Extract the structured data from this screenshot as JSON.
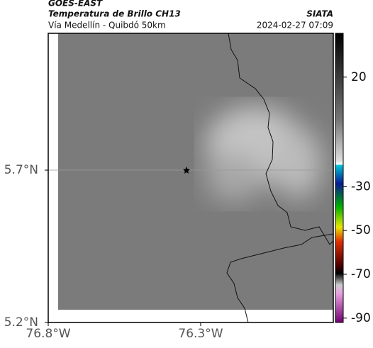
{
  "header": {
    "title": "GOES-EAST",
    "subtitle": "Temperatura de Brillo CH13",
    "region": "Vía Medellín - Quibdó 50km",
    "source": "SIATA",
    "timestamp": "2024-02-27 07:09"
  },
  "map": {
    "xlim": [
      -76.8,
      -75.865
    ],
    "ylim": [
      5.2,
      6.149
    ],
    "xticks": [
      {
        "value": -76.8,
        "label": "76.8°W"
      },
      {
        "value": -76.3,
        "label": "76.3°W"
      }
    ],
    "yticks": [
      {
        "value": 5.2,
        "label": "5.2°N"
      },
      {
        "value": 5.7,
        "label": "5.7°N"
      }
    ]
  },
  "colorbar": {
    "clim": [
      40,
      -92
    ],
    "ticks": [
      20,
      -30,
      -50,
      -70,
      -90
    ]
  }
}
